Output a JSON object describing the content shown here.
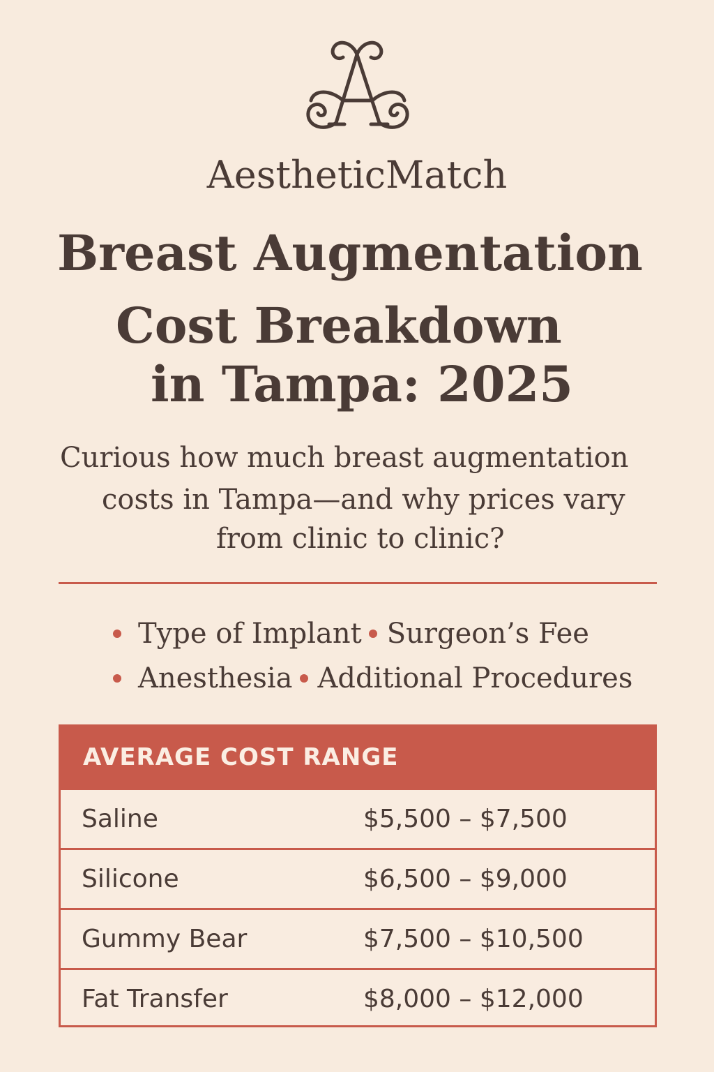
{
  "brand": {
    "name": "AestheticMatch",
    "logo_icon": "monogram-a-logo-icon"
  },
  "title": {
    "line1": "Breast Augmentation",
    "line2": "Cost Breakdown",
    "line3": "in Tampa: 2025"
  },
  "intro": {
    "line1": "Curious how much breast augmentation",
    "line2": "costs in Tampa—and why prices vary",
    "line3": "from clinic to clinic?"
  },
  "factors": [
    "Type of Implant",
    "Surgeon’s Fee",
    "Anesthesia",
    "Additional Procedures"
  ],
  "table": {
    "header": "AVERAGE COST RANGE",
    "rows": [
      {
        "name": "Saline",
        "range": "$5,500 – $7,500"
      },
      {
        "name": "Silicone",
        "range": "$6,500 – $9,000"
      },
      {
        "name": "Gummy Bear",
        "range": "$7,500 – $10,500"
      },
      {
        "name": "Fat Transfer",
        "range": "$8,000 – $12,000"
      }
    ]
  },
  "colors": {
    "background": "#f8ebde",
    "text": "#4a3b36",
    "accent": "#c85a4b"
  }
}
